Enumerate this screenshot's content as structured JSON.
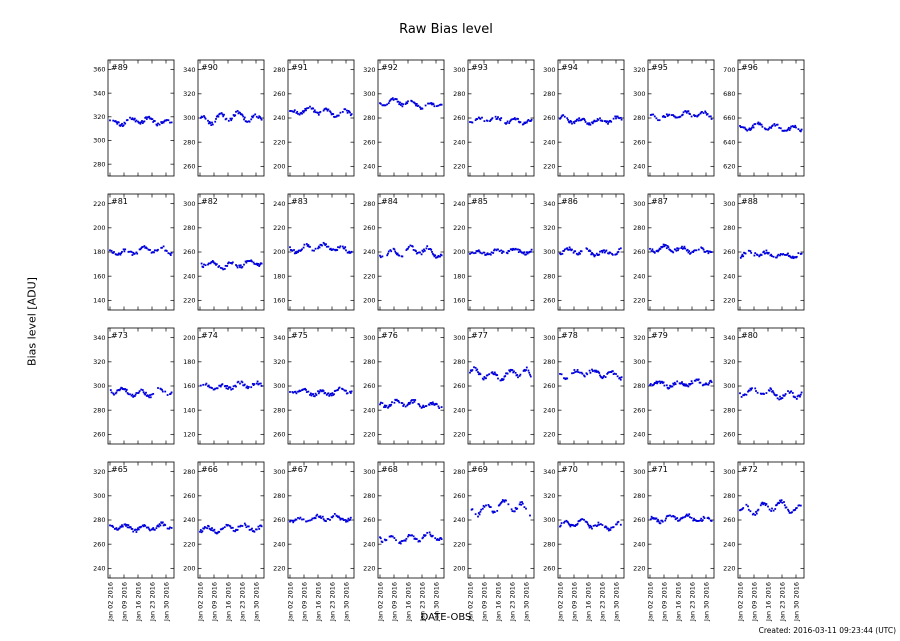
{
  "figure": {
    "created_label": "Created: 2016-03-11 09:23:44 (UTC)"
  },
  "chart_data": {
    "type": "scatter",
    "title": "Raw Bias level",
    "xlabel": "DATE-OBS",
    "ylabel": "Bias level [ADU]",
    "legend": null,
    "grid": false,
    "marker_color": "#0000dd",
    "grid_rows": 4,
    "grid_cols": 8,
    "x_tick_labels": [
      "Jan 02 2016",
      "Jan 09 2016",
      "Jan 16 2016",
      "Jan 23 2016",
      "Jan 30 2016"
    ],
    "x_tick_days": [
      0,
      7,
      14,
      21,
      28
    ],
    "day_range": [
      -1,
      32
    ],
    "panels": [
      {
        "label": "#89",
        "yticks": [
          280,
          300,
          320,
          340,
          360
        ],
        "ylim": [
          270,
          368
        ],
        "mean": 316,
        "amplitude": 3
      },
      {
        "label": "#90",
        "yticks": [
          260,
          280,
          300,
          320,
          340
        ],
        "ylim": [
          252,
          348
        ],
        "mean": 300,
        "amplitude": 4
      },
      {
        "label": "#91",
        "yticks": [
          200,
          220,
          240,
          260,
          280
        ],
        "ylim": [
          192,
          288
        ],
        "mean": 245,
        "amplitude": 3
      },
      {
        "label": "#92",
        "yticks": [
          240,
          260,
          280,
          300,
          320
        ],
        "ylim": [
          232,
          328
        ],
        "mean": 292,
        "amplitude": 3
      },
      {
        "label": "#93",
        "yticks": [
          220,
          240,
          260,
          280,
          300
        ],
        "ylim": [
          212,
          308
        ],
        "mean": 258,
        "amplitude": 2
      },
      {
        "label": "#94",
        "yticks": [
          220,
          240,
          260,
          280,
          300
        ],
        "ylim": [
          212,
          308
        ],
        "mean": 258,
        "amplitude": 2.5
      },
      {
        "label": "#95",
        "yticks": [
          240,
          260,
          280,
          300,
          320
        ],
        "ylim": [
          232,
          328
        ],
        "mean": 282,
        "amplitude": 2.5
      },
      {
        "label": "#96",
        "yticks": [
          620,
          640,
          660,
          680,
          700
        ],
        "ylim": [
          612,
          708
        ],
        "mean": 652,
        "amplitude": 2.5
      },
      {
        "label": "#81",
        "yticks": [
          140,
          160,
          180,
          200,
          220
        ],
        "ylim": [
          132,
          228
        ],
        "mean": 181,
        "amplitude": 3
      },
      {
        "label": "#82",
        "yticks": [
          220,
          240,
          260,
          280,
          300
        ],
        "ylim": [
          212,
          308
        ],
        "mean": 250,
        "amplitude": 3
      },
      {
        "label": "#83",
        "yticks": [
          160,
          180,
          200,
          220,
          240
        ],
        "ylim": [
          152,
          248
        ],
        "mean": 203,
        "amplitude": 3
      },
      {
        "label": "#84",
        "yticks": [
          200,
          220,
          240,
          260,
          280
        ],
        "ylim": [
          192,
          288
        ],
        "mean": 240,
        "amplitude": 4
      },
      {
        "label": "#85",
        "yticks": [
          160,
          180,
          200,
          220,
          240
        ],
        "ylim": [
          152,
          248
        ],
        "mean": 200,
        "amplitude": 2
      },
      {
        "label": "#86",
        "yticks": [
          260,
          280,
          300,
          320,
          340
        ],
        "ylim": [
          252,
          348
        ],
        "mean": 300,
        "amplitude": 2.5
      },
      {
        "label": "#87",
        "yticks": [
          220,
          240,
          260,
          280,
          300
        ],
        "ylim": [
          212,
          308
        ],
        "mean": 262,
        "amplitude": 2.5
      },
      {
        "label": "#88",
        "yticks": [
          220,
          240,
          260,
          280,
          300
        ],
        "ylim": [
          212,
          308
        ],
        "mean": 258,
        "amplitude": 2
      },
      {
        "label": "#73",
        "yticks": [
          260,
          280,
          300,
          320,
          340
        ],
        "ylim": [
          252,
          348
        ],
        "mean": 295,
        "amplitude": 3
      },
      {
        "label": "#74",
        "yticks": [
          120,
          140,
          160,
          180,
          200
        ],
        "ylim": [
          112,
          208
        ],
        "mean": 160,
        "amplitude": 2.5
      },
      {
        "label": "#75",
        "yticks": [
          260,
          280,
          300,
          320,
          340
        ],
        "ylim": [
          252,
          348
        ],
        "mean": 295,
        "amplitude": 2.5
      },
      {
        "label": "#76",
        "yticks": [
          220,
          240,
          260,
          280,
          300
        ],
        "ylim": [
          212,
          308
        ],
        "mean": 245,
        "amplitude": 2.5
      },
      {
        "label": "#77",
        "yticks": [
          220,
          240,
          260,
          280,
          300
        ],
        "ylim": [
          212,
          308
        ],
        "mean": 270,
        "amplitude": 4,
        "end_drop": -10
      },
      {
        "label": "#78",
        "yticks": [
          220,
          240,
          260,
          280,
          300
        ],
        "ylim": [
          212,
          308
        ],
        "mean": 270,
        "amplitude": 3
      },
      {
        "label": "#79",
        "yticks": [
          240,
          260,
          280,
          300,
          320
        ],
        "ylim": [
          232,
          328
        ],
        "mean": 282,
        "amplitude": 2.5
      },
      {
        "label": "#80",
        "yticks": [
          260,
          280,
          300,
          320,
          340
        ],
        "ylim": [
          252,
          348
        ],
        "mean": 294,
        "amplitude": 3.5
      },
      {
        "label": "#65",
        "yticks": [
          240,
          260,
          280,
          300,
          320
        ],
        "ylim": [
          232,
          328
        ],
        "mean": 274,
        "amplitude": 2.5
      },
      {
        "label": "#66",
        "yticks": [
          200,
          220,
          240,
          260,
          280
        ],
        "ylim": [
          192,
          288
        ],
        "mean": 233,
        "amplitude": 2.5
      },
      {
        "label": "#67",
        "yticks": [
          220,
          240,
          260,
          280,
          300
        ],
        "ylim": [
          212,
          308
        ],
        "mean": 261,
        "amplitude": 2.5
      },
      {
        "label": "#68",
        "yticks": [
          220,
          240,
          260,
          280,
          300
        ],
        "ylim": [
          212,
          308
        ],
        "mean": 245,
        "amplitude": 3
      },
      {
        "label": "#69",
        "yticks": [
          200,
          220,
          240,
          260,
          280
        ],
        "ylim": [
          192,
          288
        ],
        "mean": 250,
        "amplitude": 5
      },
      {
        "label": "#70",
        "yticks": [
          260,
          280,
          300,
          320,
          340
        ],
        "ylim": [
          252,
          348
        ],
        "mean": 296,
        "amplitude": 3
      },
      {
        "label": "#71",
        "yticks": [
          220,
          240,
          260,
          280,
          300
        ],
        "ylim": [
          212,
          308
        ],
        "mean": 261,
        "amplitude": 3
      },
      {
        "label": "#72",
        "yticks": [
          220,
          240,
          260,
          280,
          300
        ],
        "ylim": [
          212,
          308
        ],
        "mean": 270,
        "amplitude": 4.5
      }
    ]
  }
}
